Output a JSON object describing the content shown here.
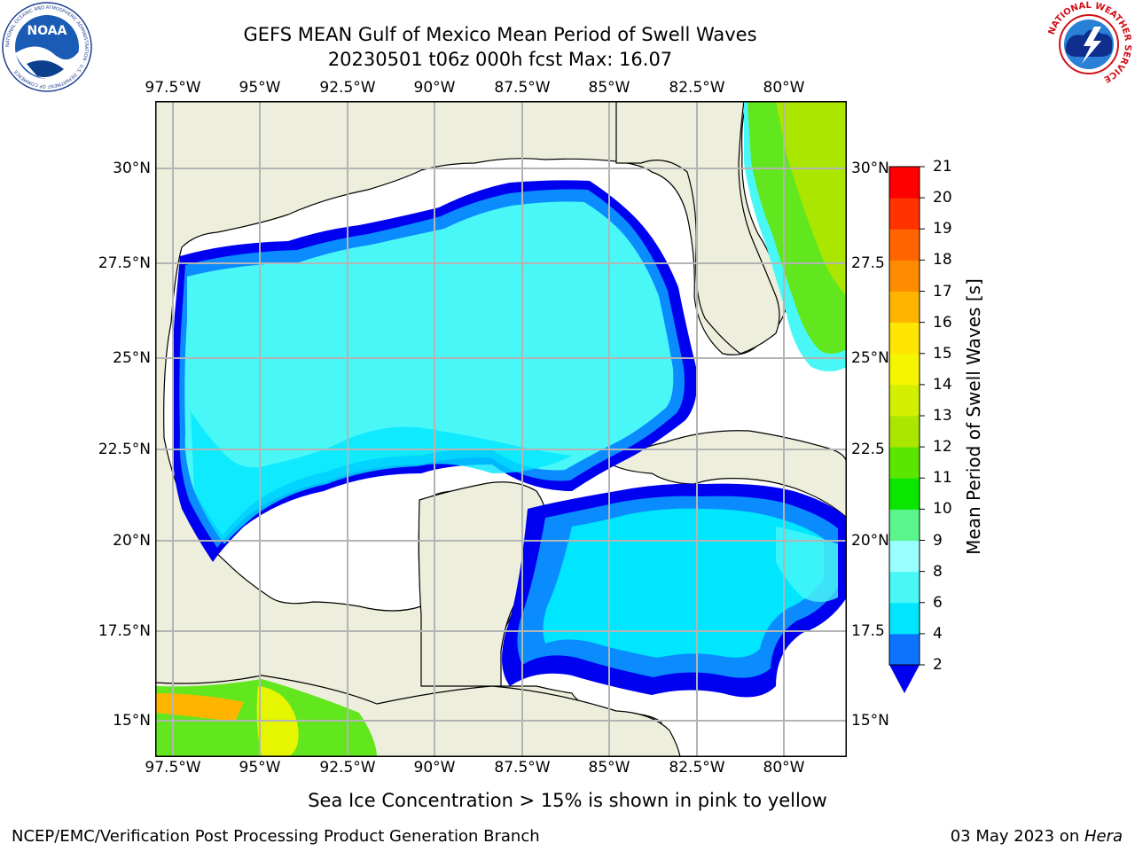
{
  "header": {
    "title_line1": "GEFS MEAN Gulf of Mexico Mean Period of Swell Waves",
    "title_line2": "20230501 t06z 000h fcst   Max: 16.07"
  },
  "logos": {
    "noaa_text": "NOAA",
    "noaa_ring_text": "NATIONAL OCEANIC AND ATMOSPHERIC ADMINISTRATION · U.S. DEPARTMENT OF COMMERCE",
    "nws_ring_text": "NATIONAL WEATHER SERVICE"
  },
  "map": {
    "lon_labels": [
      "97.5°W",
      "95°W",
      "92.5°W",
      "90°W",
      "87.5°W",
      "85°W",
      "82.5°W",
      "80°W"
    ],
    "lat_labels_left": [
      "30°N",
      "27.5°N",
      "25°N",
      "22.5°N",
      "20°N",
      "17.5°N",
      "15°N"
    ],
    "lat_labels_right": [
      "30°N",
      "27.5",
      "25°N",
      "22.5",
      "20°N",
      "17.5",
      "15°N"
    ],
    "colors": {
      "land": "#eeeedc",
      "ocean_main": "#4af7f7",
      "ocean_deep": "#00e6ff",
      "shelf_mid": "#0a8cff",
      "shelf_edge": "#0000f0",
      "swell_green": "#62e71e",
      "swell_yellow": "#e6f500",
      "swell_orange": "#ffb400",
      "grid": "#b4b4b4"
    }
  },
  "colorbar": {
    "label": "Mean Period of Swell Waves [s]",
    "ticks": [
      "2",
      "4",
      "6",
      "8",
      "9",
      "10",
      "11",
      "12",
      "13",
      "14",
      "15",
      "16",
      "17",
      "18",
      "19",
      "20",
      "21"
    ],
    "colors": [
      "#0d73ff",
      "#00e6ff",
      "#4af7f7",
      "#9affff",
      "#5af58c",
      "#0ae600",
      "#5ae600",
      "#aae600",
      "#d2f000",
      "#f5f500",
      "#ffe600",
      "#ffb400",
      "#ff8c00",
      "#ff6400",
      "#ff3200",
      "#ff0000"
    ],
    "under_color": "#0000f0"
  },
  "footer": {
    "note": "Sea Ice Concentration > 15% is shown in pink to yellow",
    "credit": "NCEP/EMC/Verification Post Processing Product Generation Branch",
    "date": "03 May 2023 on ",
    "host": "Hera"
  }
}
